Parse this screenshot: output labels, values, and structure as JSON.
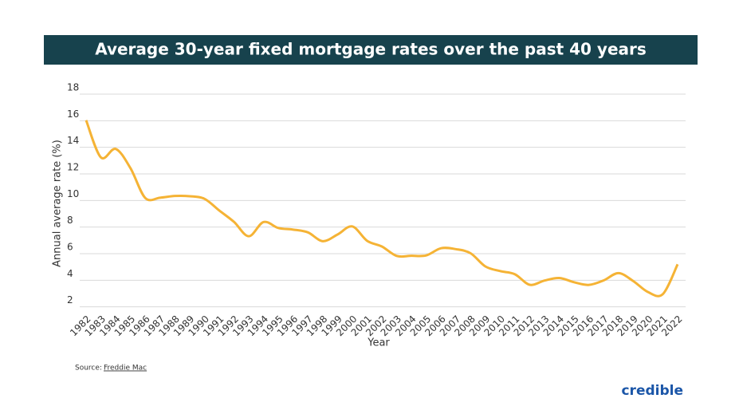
{
  "chart_data": {
    "type": "line",
    "title": "Average 30-year fixed mortgage rates over the past 40 years",
    "y_label": "Annual average rate (%)",
    "x_label": "Year",
    "categories": [
      "1982",
      "1983",
      "1984",
      "1985",
      "1986",
      "1987",
      "1988",
      "1989",
      "1990",
      "1991",
      "1992",
      "1993",
      "1994",
      "1995",
      "1996",
      "1997",
      "1998",
      "1999",
      "2000",
      "2001",
      "2002",
      "2003",
      "2004",
      "2005",
      "2006",
      "2007",
      "2008",
      "2009",
      "2010",
      "2011",
      "2012",
      "2013",
      "2014",
      "2015",
      "2016",
      "2017",
      "2018",
      "2019",
      "2020",
      "2021",
      "2022"
    ],
    "series": [
      {
        "name": "Annual average rate",
        "color": "#f5b335",
        "values": [
          16.04,
          13.24,
          13.88,
          12.43,
          10.19,
          10.21,
          10.34,
          10.32,
          10.13,
          9.25,
          8.39,
          7.31,
          8.38,
          7.93,
          7.81,
          7.6,
          6.94,
          7.44,
          8.05,
          6.97,
          6.54,
          5.83,
          5.84,
          5.87,
          6.41,
          6.34,
          6.03,
          5.04,
          4.69,
          4.45,
          3.66,
          3.98,
          4.17,
          3.85,
          3.65,
          3.99,
          4.54,
          3.94,
          3.11,
          2.96,
          5.2
        ]
      }
    ],
    "ylim": [
      1.5,
      18
    ],
    "yticks": [
      2,
      4,
      6,
      8,
      10,
      12,
      14,
      16,
      18
    ],
    "grid": true,
    "source_prefix": "Source:",
    "source": "Freddie Mac",
    "logo": "credible"
  }
}
